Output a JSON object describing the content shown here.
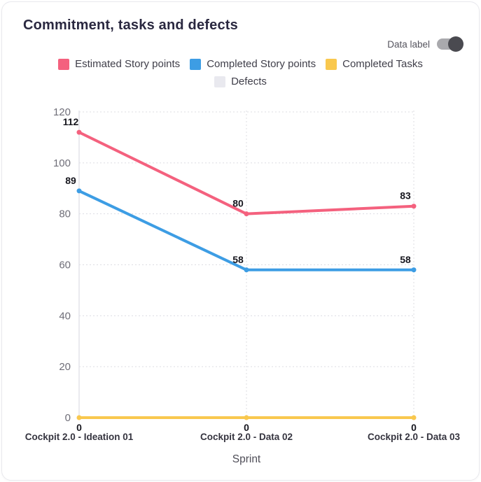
{
  "header": {
    "title": "Commitment, tasks and defects"
  },
  "controls": {
    "data_label_toggle": {
      "label": "Data label",
      "state": "on"
    }
  },
  "chart_data": {
    "type": "line",
    "title": "Commitment, tasks and defects",
    "categories": [
      "Cockpit 2.0 - Ideation 01",
      "Cockpit 2.0 - Data 02",
      "Cockpit 2.0 - Data 03"
    ],
    "series": [
      {
        "name": "Estimated Story points",
        "color": "#f4617e",
        "values": [
          112,
          80,
          83
        ]
      },
      {
        "name": "Completed Story points",
        "color": "#3d9de4",
        "values": [
          89,
          58,
          58
        ]
      },
      {
        "name": "Completed Tasks",
        "color": "#f9c84e",
        "values": [
          0,
          0,
          0
        ]
      },
      {
        "name": "Defects",
        "color": "#e9e9ef",
        "values": null
      }
    ],
    "xlabel": "Sprint",
    "ylabel": "",
    "ylim": [
      0,
      120
    ],
    "yticks": [
      0,
      20,
      40,
      60,
      80,
      100,
      120
    ],
    "grid": true,
    "data_labels_shown": true,
    "legend_position": "top"
  },
  "colors": {
    "grid": "#dcdce2",
    "axis_line": "#e4e4ea",
    "tick_text": "#6f6e78",
    "category_text": "#35343f",
    "value_label_text": "#17171f",
    "axis_title_text": "#4f4e58",
    "title_text": "#2a2840",
    "toggle_track": "#a9a9ad",
    "toggle_knob": "#4a4a50"
  }
}
